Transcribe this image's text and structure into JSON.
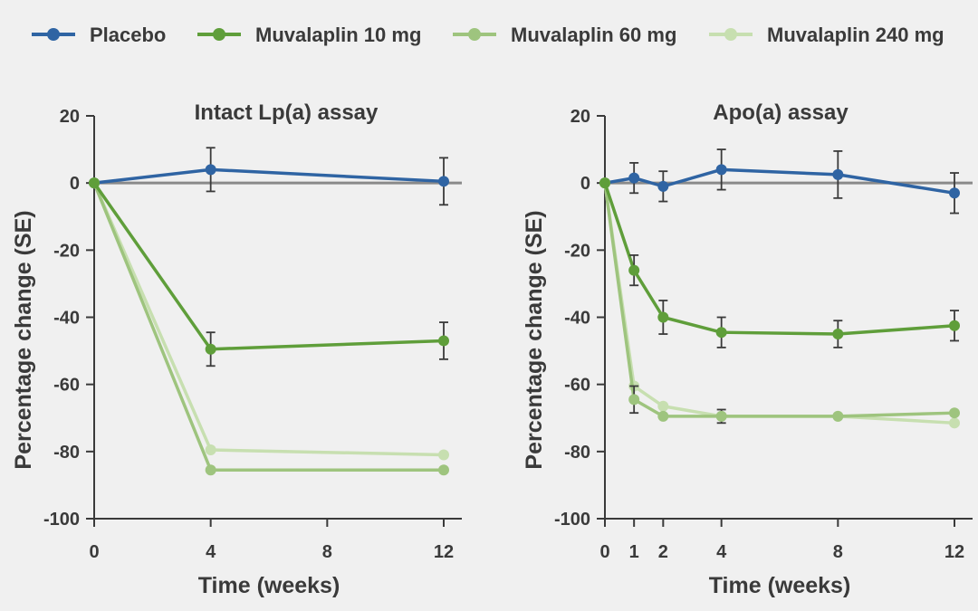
{
  "legend": [
    {
      "label": "Placebo",
      "color": "#2f64a3"
    },
    {
      "label": "Muvalaplin 10 mg",
      "color": "#5f9e3a"
    },
    {
      "label": "Muvalaplin 60 mg",
      "color": "#9ec47e"
    },
    {
      "label": "Muvalaplin 240 mg",
      "color": "#c7dfb0"
    }
  ],
  "chart_data": [
    {
      "type": "line",
      "title": "Intact Lp(a) assay",
      "xlabel": "Time (weeks)",
      "ylabel": "Percentage change (SE)",
      "xlim": [
        0,
        12
      ],
      "ylim": [
        -100,
        20
      ],
      "xticks": [
        0,
        4,
        8,
        12
      ],
      "yticks": [
        20,
        0,
        -20,
        -40,
        -60,
        -80,
        -100
      ],
      "ytick_labels": [
        "20",
        "0",
        "-20",
        "-40",
        "-60",
        "-80",
        "-100"
      ],
      "reference_line": 0,
      "series": [
        {
          "name": "Placebo",
          "color": "#2f64a3",
          "x": [
            0,
            4,
            12
          ],
          "y": [
            0,
            4,
            0.5
          ],
          "err": [
            0,
            6.5,
            7
          ]
        },
        {
          "name": "Muvalaplin 240 mg",
          "color": "#c7dfb0",
          "x": [
            0,
            4,
            12
          ],
          "y": [
            0,
            -79.5,
            -81
          ],
          "err": [
            0,
            0,
            0
          ]
        },
        {
          "name": "Muvalaplin 60 mg",
          "color": "#9ec47e",
          "x": [
            0,
            4,
            12
          ],
          "y": [
            0,
            -85.5,
            -85.5
          ],
          "err": [
            0,
            0,
            0
          ]
        },
        {
          "name": "Muvalaplin 10 mg",
          "color": "#5f9e3a",
          "x": [
            0,
            4,
            12
          ],
          "y": [
            0,
            -49.5,
            -47
          ],
          "err": [
            0,
            5,
            5.5
          ]
        }
      ]
    },
    {
      "type": "line",
      "title": "Apo(a) assay",
      "xlabel": "Time (weeks)",
      "ylabel": "Percentage change (SE)",
      "xlim": [
        0,
        12
      ],
      "ylim": [
        -100,
        20
      ],
      "xticks": [
        0,
        1,
        2,
        4,
        8,
        12
      ],
      "yticks": [
        20,
        0,
        -20,
        -40,
        -60,
        -80,
        -100
      ],
      "ytick_labels": [
        "20",
        "0",
        "-20",
        "-40",
        "-60",
        "-80",
        "-100"
      ],
      "reference_line": 0,
      "series": [
        {
          "name": "Placebo",
          "color": "#2f64a3",
          "x": [
            0,
            1,
            2,
            4,
            8,
            12
          ],
          "y": [
            0,
            1.5,
            -1,
            4,
            2.5,
            -3
          ],
          "err": [
            0,
            4.5,
            4.5,
            6,
            7,
            6
          ]
        },
        {
          "name": "Muvalaplin 240 mg",
          "color": "#c7dfb0",
          "x": [
            0,
            1,
            2,
            4,
            8,
            12
          ],
          "y": [
            0,
            -60.5,
            -66.5,
            -69.5,
            -69.5,
            -71.5
          ],
          "err": [
            0,
            0,
            0,
            0,
            0,
            0
          ]
        },
        {
          "name": "Muvalaplin 60 mg",
          "color": "#9ec47e",
          "x": [
            0,
            1,
            2,
            4,
            8,
            12
          ],
          "y": [
            0,
            -64.5,
            -69.5,
            -69.5,
            -69.5,
            -68.5
          ],
          "err": [
            0,
            4,
            0,
            2,
            0,
            0
          ]
        },
        {
          "name": "Muvalaplin 10 mg",
          "color": "#5f9e3a",
          "x": [
            0,
            1,
            2,
            4,
            8,
            12
          ],
          "y": [
            0,
            -26,
            -40,
            -44.5,
            -45,
            -42.5
          ],
          "err": [
            0,
            4.5,
            5,
            4.5,
            4,
            4.5
          ]
        }
      ]
    }
  ]
}
